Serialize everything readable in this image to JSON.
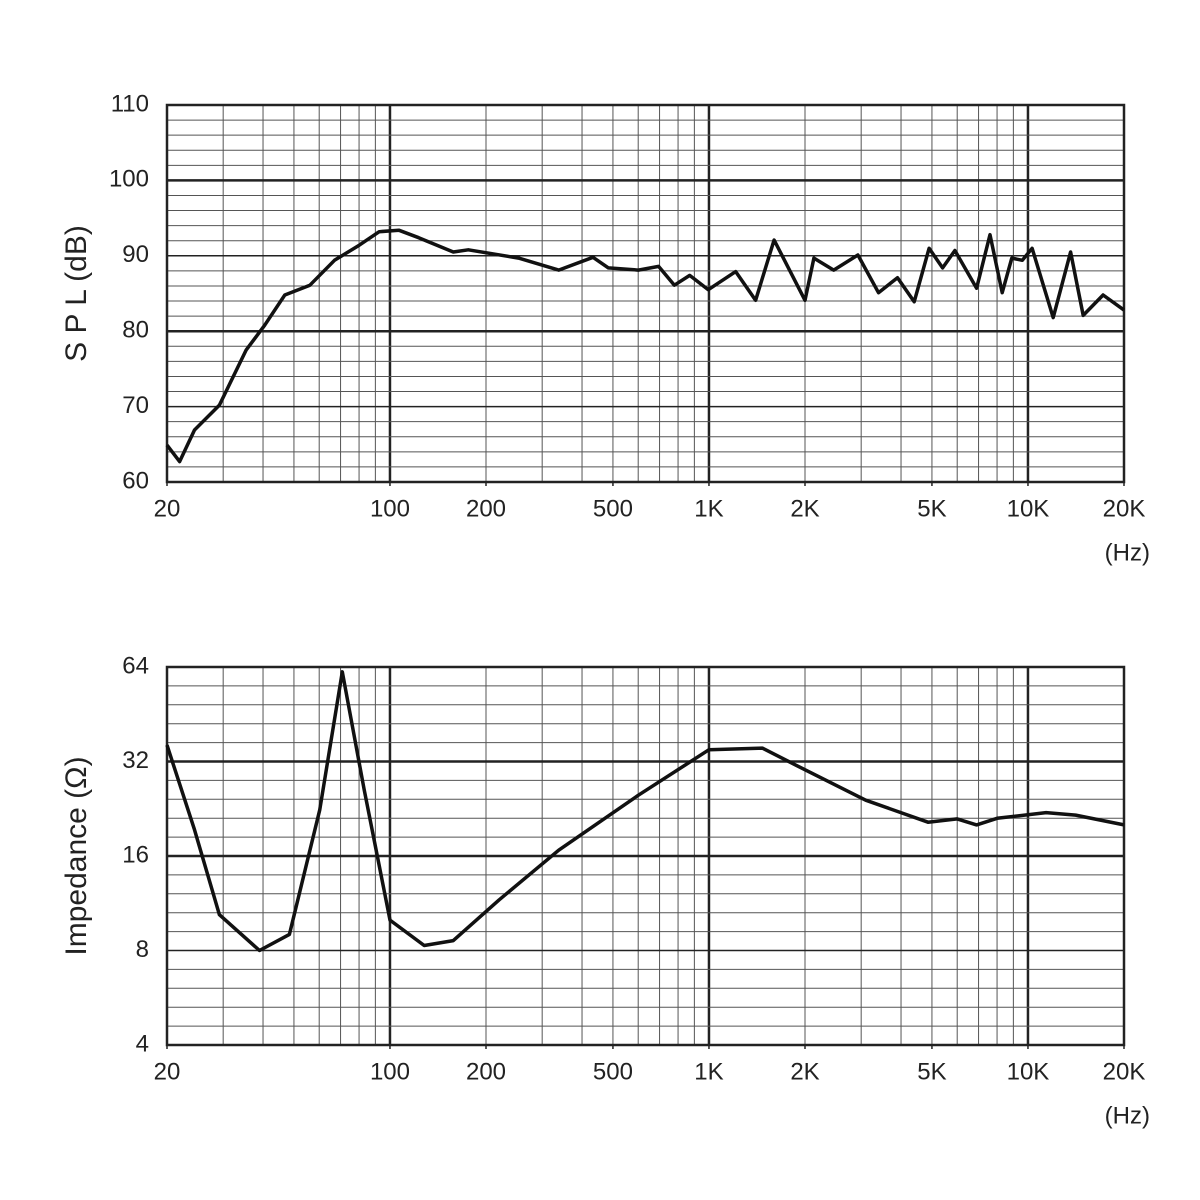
{
  "chart_data": [
    {
      "type": "line",
      "y_label": "S P L (dB)",
      "x_unit": "(Hz)",
      "xscale": "log",
      "yscale": "linear",
      "grid": true,
      "xlim": [
        20,
        20000
      ],
      "ylim": [
        60,
        110
      ],
      "xticks": [
        20,
        100,
        200,
        500,
        {
          "value": 1000,
          "label": "1K"
        },
        {
          "value": 2000,
          "label": "2K"
        },
        {
          "value": 5000,
          "label": "5K"
        },
        {
          "value": 10000,
          "label": "10K"
        },
        {
          "value": 20000,
          "label": "20K"
        }
      ],
      "yticks": [
        60,
        70,
        80,
        90,
        100,
        110
      ],
      "color": "#111111",
      "x": [
        20,
        21.9,
        24.4,
        29.2,
        35.4,
        40.5,
        46.8,
        56.1,
        67,
        80.1,
        92.5,
        106.6,
        123,
        158,
        176,
        253,
        338,
        433,
        484,
        601,
        695,
        779,
        870,
        995,
        1213,
        1400,
        1600,
        2000,
        2133,
        2460,
        2930,
        3400,
        3900,
        4400,
        4900,
        5400,
        5900,
        6900,
        7600,
        8300,
        8900,
        9600,
        10300,
        12000,
        13600,
        14900,
        17200,
        20000
      ],
      "values": [
        64.9,
        62.7,
        66.9,
        70.2,
        77.5,
        80.8,
        84.8,
        86.1,
        89.4,
        91.4,
        93.2,
        93.4,
        92.4,
        90.5,
        90.8,
        89.7,
        88.1,
        89.8,
        88.4,
        88.1,
        88.6,
        86.1,
        87.4,
        85.5,
        87.9,
        84.1,
        92.1,
        84.1,
        89.7,
        88.1,
        90.1,
        85.1,
        87.1,
        83.9,
        91.0,
        88.4,
        90.7,
        85.7,
        92.8,
        85.1,
        89.7,
        89.4,
        91.0,
        81.8,
        90.5,
        82.1,
        84.8,
        82.8
      ]
    },
    {
      "type": "line",
      "y_label": "Impedance (Ω)",
      "x_unit": "(Hz)",
      "xscale": "log",
      "yscale": "log",
      "grid": true,
      "xlim": [
        20,
        20000
      ],
      "ylim": [
        4,
        64
      ],
      "xticks": [
        20,
        100,
        200,
        500,
        {
          "value": 1000,
          "label": "1K"
        },
        {
          "value": 2000,
          "label": "2K"
        },
        {
          "value": 5000,
          "label": "5K"
        },
        {
          "value": 10000,
          "label": "10K"
        },
        {
          "value": 20000,
          "label": "20K"
        }
      ],
      "yticks": [
        4,
        8,
        16,
        32,
        64
      ],
      "color": "#111111",
      "x": [
        20,
        24.4,
        29.2,
        39,
        48.4,
        60.2,
        70.9,
        83,
        100,
        128,
        158,
        220,
        338,
        601,
        1000,
        1470,
        1880,
        3100,
        4860,
        6000,
        6900,
        8000,
        11400,
        14100,
        20000
      ],
      "values": [
        36.1,
        19.4,
        10.4,
        8.0,
        9.0,
        22.4,
        61.8,
        26.0,
        10.0,
        8.3,
        8.6,
        11.6,
        16.7,
        25.0,
        34.9,
        35.3,
        31.1,
        24.1,
        20.5,
        21.0,
        20.1,
        21.1,
        22.0,
        21.6,
        20.1
      ]
    }
  ]
}
